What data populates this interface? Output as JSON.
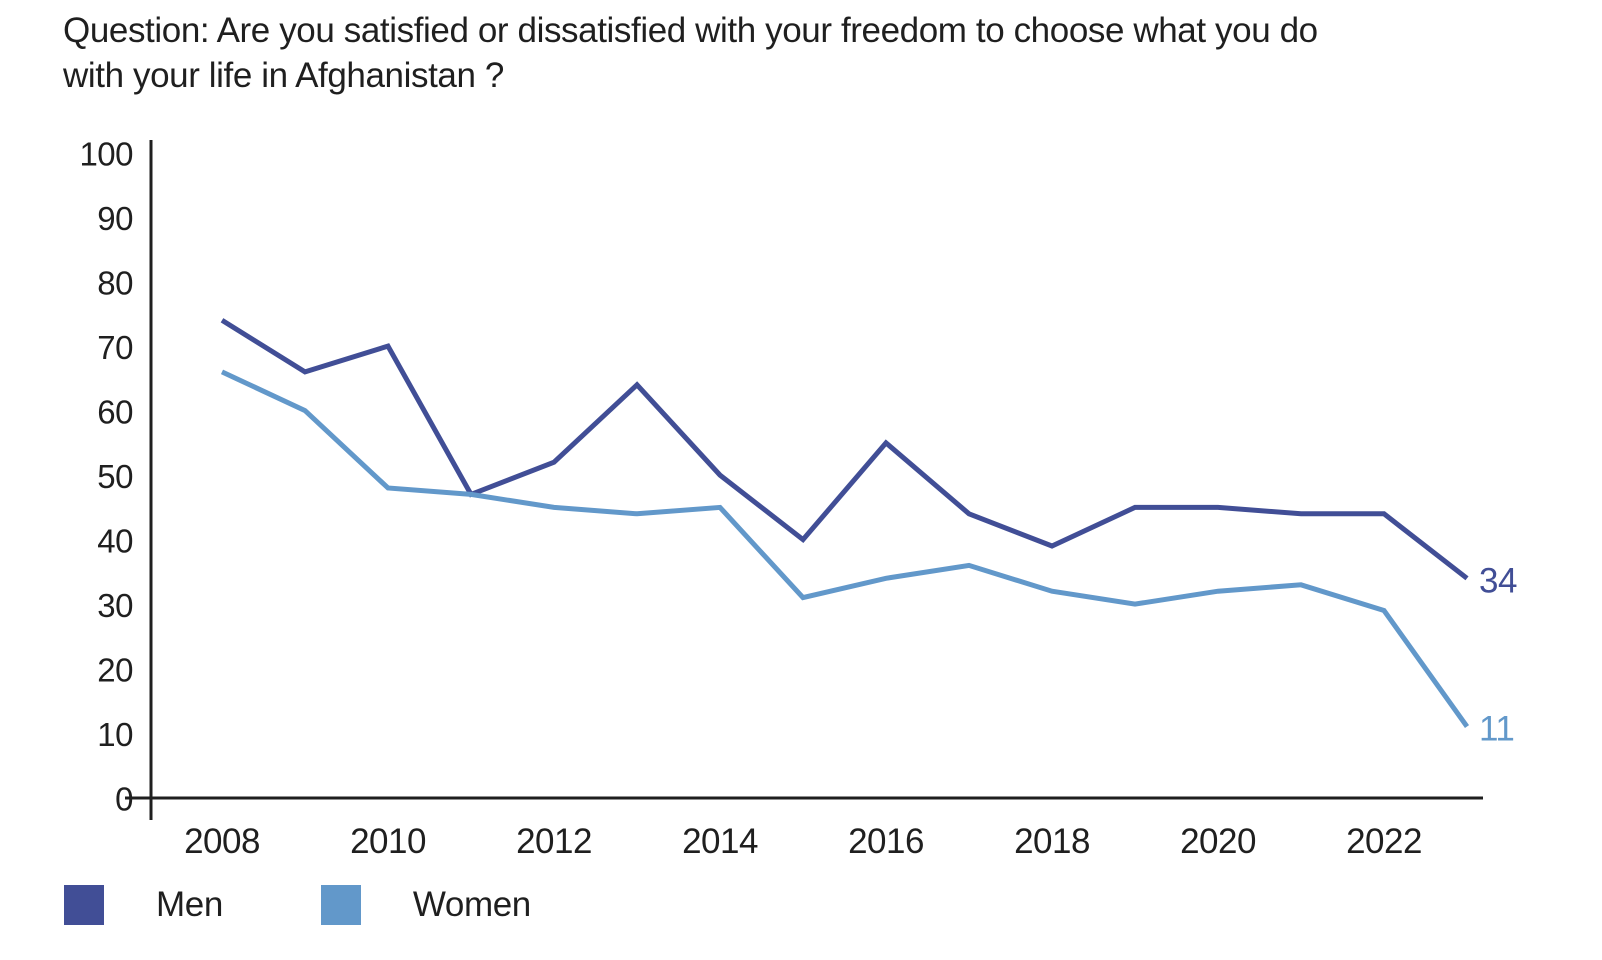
{
  "chart_data": {
    "type": "line",
    "title_line1": "Question: Are you satisfied or dissatisfied with your freedom to choose what you do",
    "title_line2": "with your life in Afghanistan ?",
    "x": [
      2008,
      2009,
      2010,
      2011,
      2012,
      2013,
      2014,
      2015,
      2016,
      2017,
      2018,
      2019,
      2020,
      2021,
      2022,
      2023
    ],
    "xticks": [
      2008,
      2010,
      2012,
      2014,
      2016,
      2018,
      2020,
      2022
    ],
    "yticks": [
      0,
      10,
      20,
      30,
      40,
      50,
      60,
      70,
      80,
      90,
      100
    ],
    "ylim": [
      0,
      100
    ],
    "grid": false,
    "legend_position": "bottom-left",
    "axis_color": "#1f1f1f",
    "series": [
      {
        "name": "Men",
        "color": "#414E96",
        "values": [
          74,
          66,
          70,
          47,
          52,
          64,
          50,
          40,
          55,
          44,
          39,
          45,
          45,
          44,
          44,
          34
        ],
        "end_label": "34"
      },
      {
        "name": "Women",
        "color": "#6298CA",
        "values": [
          66,
          60,
          48,
          47,
          45,
          44,
          45,
          31,
          34,
          36,
          32,
          30,
          32,
          33,
          29,
          11
        ],
        "end_label": "11"
      }
    ]
  }
}
